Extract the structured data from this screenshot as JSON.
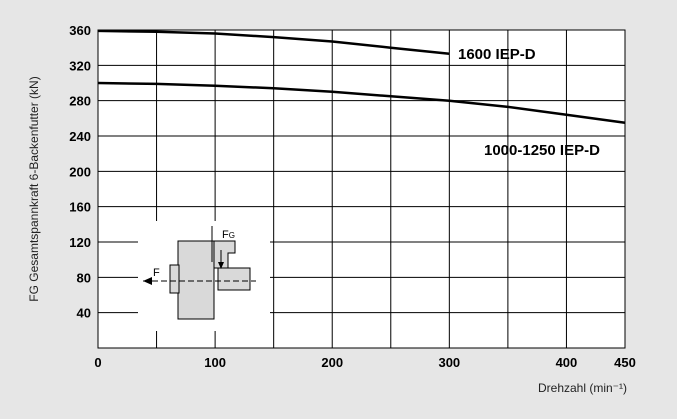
{
  "chart_data": {
    "type": "line",
    "title": "",
    "xlabel": "Drehzahl (min⁻¹)",
    "ylabel": "FG Gesamtspannkraft 6-Backenfutter (kN)",
    "xlim": [
      0,
      450
    ],
    "ylim": [
      0,
      360
    ],
    "xticks": [
      0,
      100,
      200,
      300,
      400,
      450
    ],
    "yticks": [
      40,
      80,
      120,
      160,
      200,
      240,
      280,
      320,
      360
    ],
    "grid": true,
    "series": [
      {
        "name": "1600 IEP-D",
        "x": [
          0,
          50,
          100,
          150,
          200,
          250,
          300
        ],
        "y": [
          359,
          358,
          356,
          352,
          347,
          340,
          333
        ]
      },
      {
        "name": "1000-1250 IEP-D",
        "x": [
          0,
          50,
          100,
          150,
          200,
          250,
          300,
          350,
          400,
          450
        ],
        "y": [
          300,
          299,
          297,
          294,
          290,
          285,
          280,
          273,
          264,
          255
        ]
      }
    ],
    "inset": {
      "label_force": "F",
      "label_fg_main": "F",
      "label_fg_sub": "G",
      "icon": "chuck-jaw-diagram-icon"
    },
    "colors": {
      "background": "#e6e6e6",
      "plot": "#ffffff",
      "line": "#000000",
      "inset_fill": "#d9d9d9"
    }
  }
}
